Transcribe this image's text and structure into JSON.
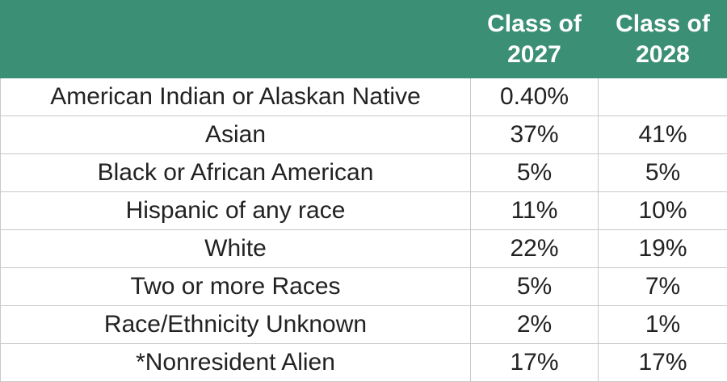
{
  "table": {
    "header": [
      "Class of 2027",
      "Class of 2028"
    ],
    "rows": [
      [
        "American Indian or Alaskan Native",
        "0.40%",
        null
      ],
      [
        "Asian",
        "37%",
        "41%"
      ],
      [
        "Black or African American",
        "5%",
        "5%"
      ],
      [
        "Hispanic of any race",
        "11%",
        "10%"
      ],
      [
        "White",
        "22%",
        "19%"
      ],
      [
        "Two or more Races",
        "5%",
        "7%"
      ],
      [
        "Race/Ethnicity Unknown",
        "2%",
        "1%"
      ],
      [
        "*Nonresident Alien",
        "17%",
        "17%"
      ]
    ]
  }
}
